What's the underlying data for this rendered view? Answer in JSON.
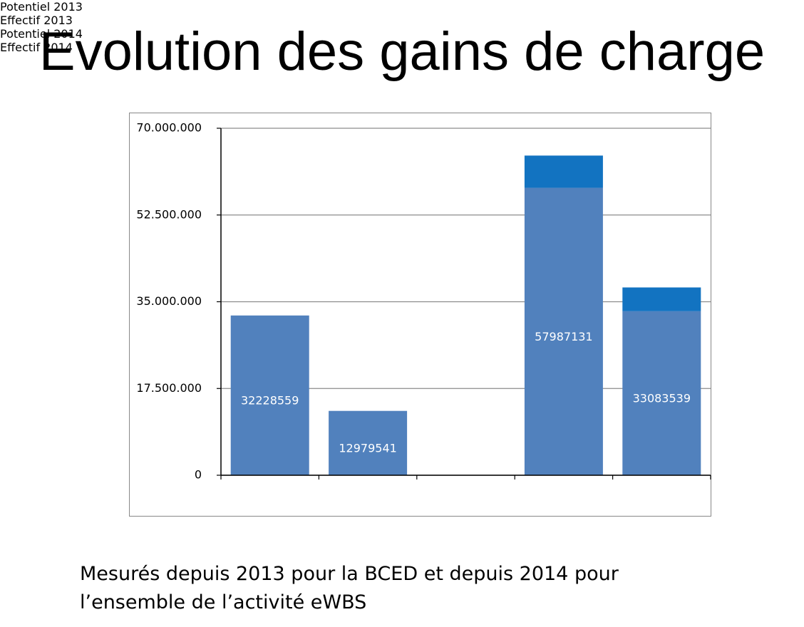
{
  "chart_data": {
    "type": "stacked_bar",
    "title": "Evolution des gains de charge",
    "categories": [
      "Potentiel 2013",
      "Effectif 2013",
      null,
      "Potentiel 2014",
      "Effectif 2014"
    ],
    "series": [
      {
        "color": "#5181bd",
        "values": [
          32228559,
          12979541,
          null,
          57987131,
          33083539
        ]
      },
      {
        "color": "#1273c1",
        "values": [
          null,
          null,
          null,
          6500000,
          4800000
        ]
      }
    ],
    "ylim": [
      0,
      70000000
    ],
    "yticks": [
      0,
      {
        "value": 17500000,
        "label": "17.500.000"
      },
      {
        "value": 35000000,
        "label": "35.000.000"
      },
      {
        "value": 52500000,
        "label": "52.500.000"
      },
      {
        "value": 70000000,
        "label": "70.000.000"
      }
    ],
    "grid": true,
    "note": "Mesurés depuis 2013 pour la BCED et depuis 2014 pour l’ensemble de l’activité eWBS"
  }
}
